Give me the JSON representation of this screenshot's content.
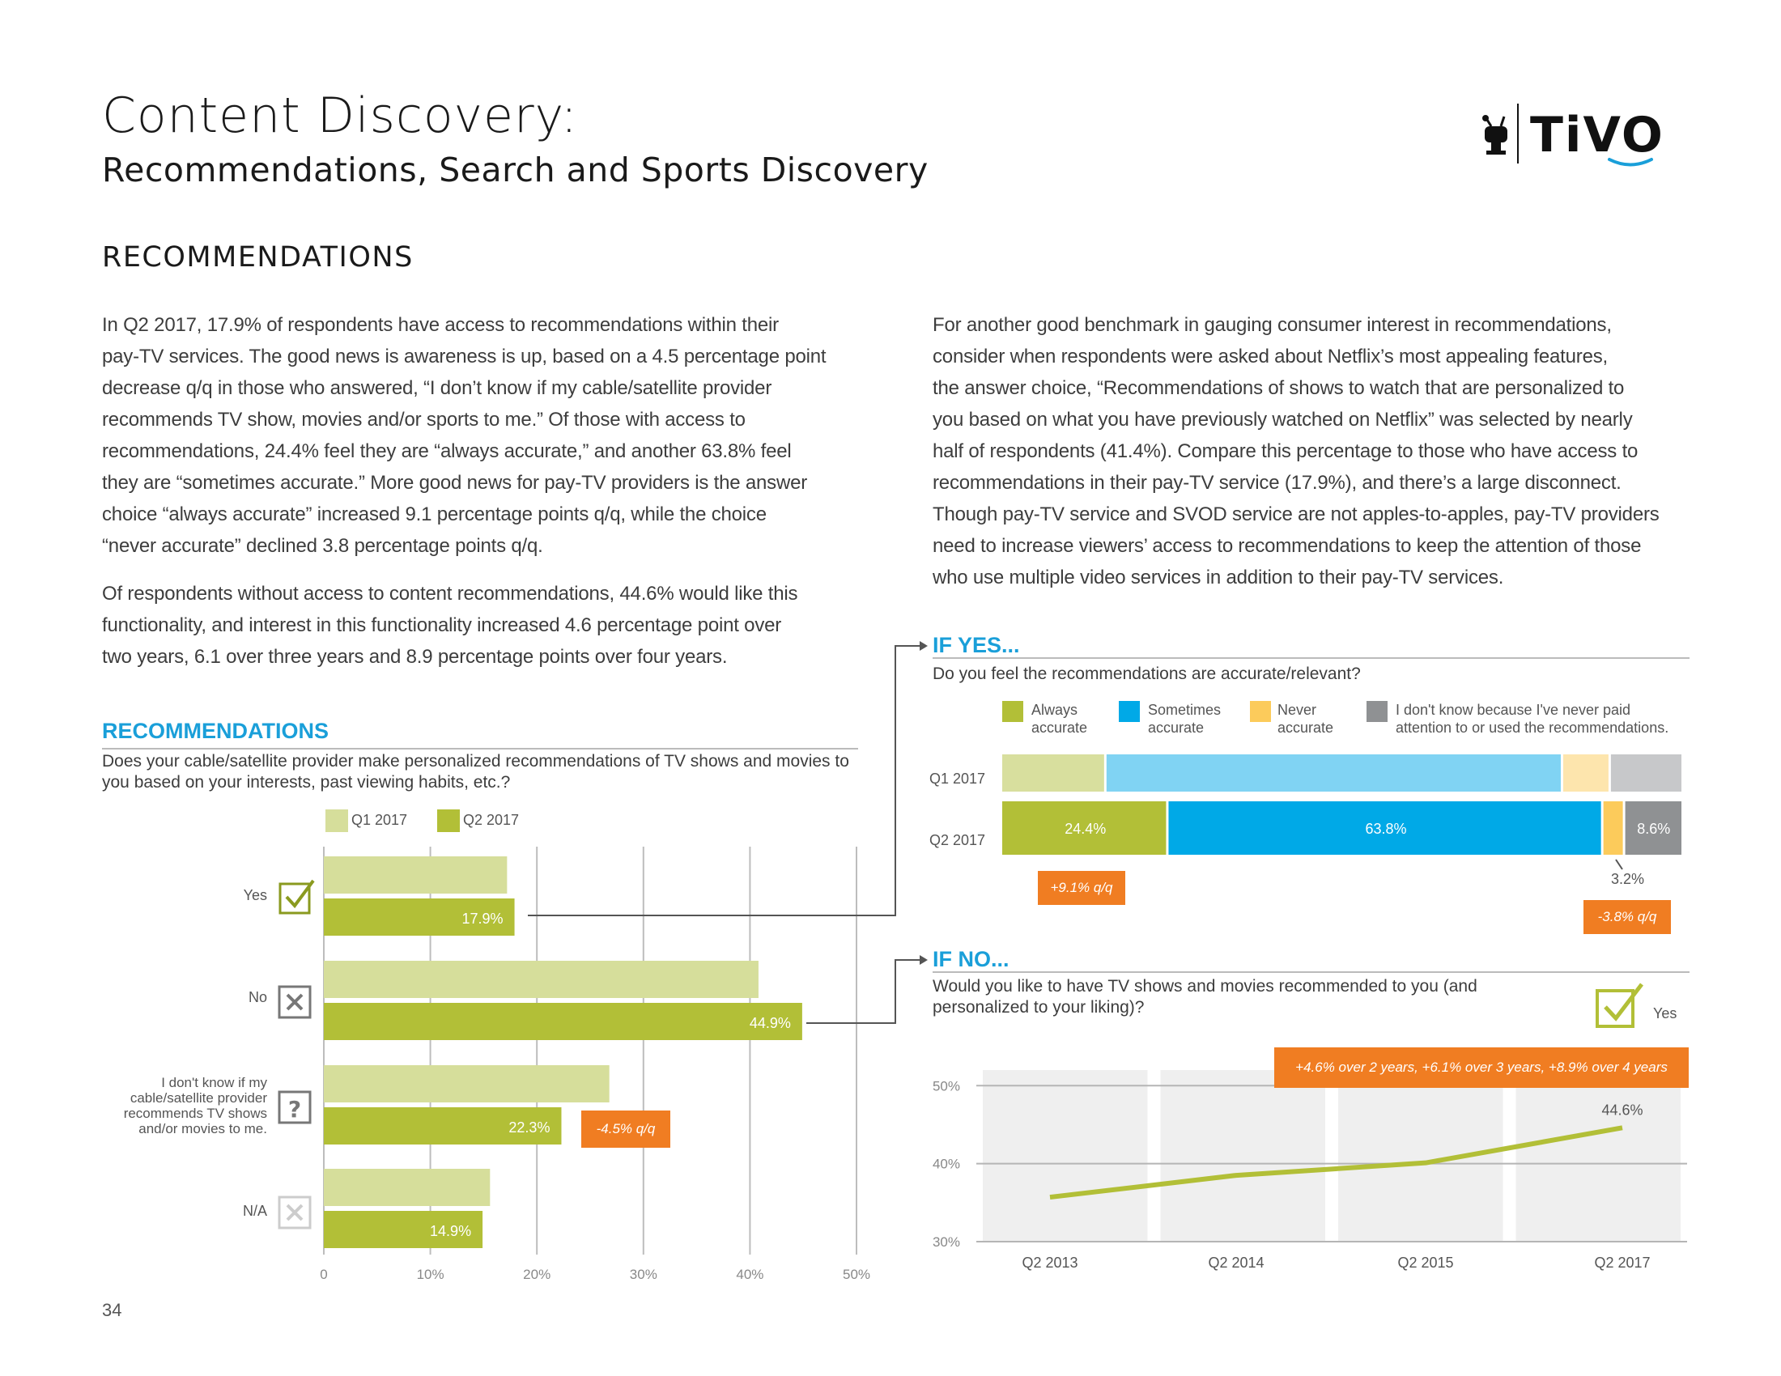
{
  "header": {
    "title": "Content Discovery:",
    "subtitle": "Recommendations, Search and Sports Discovery",
    "logo_text": "TiVO"
  },
  "section_title": "RECOMMENDATIONS",
  "left_paragraphs": [
    [
      "In Q2 2017, 17.9% of respondents have access to recommendations within their",
      "pay-TV services. The good news is awareness is up, based on a 4.5 percentage point",
      "decrease q/q in those who answered, “I don’t know if my cable/satellite provider",
      "recommends TV show, movies and/or sports to me.” Of those with access to",
      "recommendations, 24.4% feel they are “always accurate,” and another 63.8% feel",
      "they are “sometimes accurate.” More good news for pay-TV providers is the answer",
      "choice “always accurate” increased 9.1 percentage points q/q, while the choice",
      "“never accurate” declined 3.8 percentage points q/q."
    ],
    [
      "Of respondents without access to content recommendations, 44.6% would like this",
      "functionality, and interest in this functionality increased 4.6 percentage point over",
      "two years, 6.1 over three years and 8.9 percentage points over four years."
    ]
  ],
  "right_paragraph": [
    "For another good benchmark in gauging consumer interest in recommendations,",
    "consider when respondents were asked about Netflix’s most appealing features,",
    "the answer choice, “Recommendations of shows to watch that are personalized to",
    "you based on what you have previously watched on Netflix” was selected by nearly",
    "half of respondents (41.4%). Compare this percentage to those who have access to",
    "recommendations in their pay-TV service (17.9%), and there’s a large disconnect.",
    "Though pay-TV service and SVOD service are not apples-to-apples, pay-TV providers",
    "need to increase viewers’ access to recommendations to keep the attention of those",
    "who use multiple video services in addition to their pay-TV services."
  ],
  "page_number": "34",
  "colors": {
    "q1": "#d6de9b",
    "q2": "#b2bf37",
    "sometimes": "#00a9e7",
    "sometimes_light": "#80d3f3",
    "never": "#fccb5b",
    "never_light": "#fde5ad",
    "dontknow": "#8f9193",
    "dontknow_light": "#c7c8ca",
    "always_light": "#d8df9e",
    "orange": "#f07d22",
    "blue_heading": "#1a9fd9"
  },
  "chart_data": [
    {
      "type": "bar",
      "orientation": "horizontal",
      "title": "RECOMMENDATIONS",
      "subtitle": "Does your cable/satellite provider make personalized recommendations of TV shows and movies to you based on your interests, past viewing habits, etc.?",
      "categories": [
        "Yes",
        "No",
        "I don't know if my cable/satellite provider recommends TV shows and/or movies to me.",
        "N/A"
      ],
      "category_icons": [
        "check-icon",
        "x-icon",
        "question-icon",
        "x-icon"
      ],
      "series": [
        {
          "name": "Q1 2017",
          "values": [
            17.2,
            40.8,
            26.8,
            15.6
          ],
          "labels": [
            "",
            "",
            "",
            ""
          ]
        },
        {
          "name": "Q2 2017",
          "values": [
            17.9,
            44.9,
            22.3,
            14.9
          ],
          "labels": [
            "17.9%",
            "44.9%",
            "22.3%",
            "14.9%"
          ]
        }
      ],
      "x_ticks": [
        "0",
        "10%",
        "20%",
        "30%",
        "40%",
        "50%"
      ],
      "xlim": [
        0,
        50
      ],
      "grid": true,
      "legend": "top",
      "annotation": {
        "category_index": 2,
        "text": "-4.5% q/q"
      }
    },
    {
      "type": "bar",
      "orientation": "horizontal",
      "stacked": true,
      "heading": "IF YES...",
      "subtitle": "Do you feel the recommendations are accurate/relevant?",
      "categories": [
        "Q1 2017",
        "Q2 2017"
      ],
      "series": [
        {
          "name": "Always accurate",
          "values": [
            15.3,
            24.4
          ],
          "labels": [
            "",
            "24.4%"
          ]
        },
        {
          "name": "Sometimes accurate",
          "values": [
            67.0,
            63.8
          ],
          "labels": [
            "",
            "63.8%"
          ]
        },
        {
          "name": "Never accurate",
          "values": [
            7.0,
            3.2
          ],
          "labels": [
            "",
            "3.2%"
          ]
        },
        {
          "name": "I don't know because I've never paid attention to or used the recommendations.",
          "values": [
            10.7,
            8.6
          ],
          "labels": [
            "",
            "8.6%"
          ]
        }
      ],
      "legend_labels": [
        [
          "Always",
          "accurate"
        ],
        [
          "Sometimes",
          "accurate"
        ],
        [
          "Never",
          "accurate"
        ],
        [
          "I don't know because I've never paid",
          "attention to or used the recommendations."
        ]
      ],
      "xlim": [
        0,
        100
      ],
      "legend": "top",
      "annotations": [
        "+9.1% q/q",
        "-3.8% q/q"
      ]
    },
    {
      "type": "line",
      "heading": "IF NO...",
      "subtitle": "Would you like to have TV shows and movies recommended to you (and personalized to your liking)?",
      "legend_label": "Yes",
      "x": [
        "Q2 2013",
        "Q2 2014",
        "Q2 2015",
        "Q2 2017"
      ],
      "series": [
        {
          "name": "Yes",
          "values": [
            35.7,
            38.5,
            40.1,
            44.6
          ]
        }
      ],
      "point_labels": [
        "",
        "",
        "",
        "44.6%"
      ],
      "y_ticks": [
        "50%",
        "40%",
        "30%"
      ],
      "ylim": [
        30,
        52
      ],
      "grid": true,
      "annotation": "+4.6% over 2 years, +6.1% over 3 years, +8.9% over 4 years"
    }
  ]
}
